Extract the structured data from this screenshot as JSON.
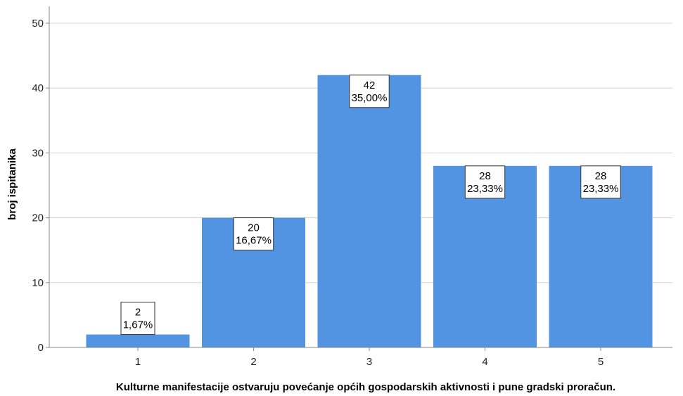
{
  "chart_data": {
    "type": "bar",
    "title": "",
    "xlabel": "Kulturne manifestacije ostvaruju povećanje općih gospodarskih aktivnosti i pune gradski proračun.",
    "ylabel": "broj ispitanika",
    "categories": [
      "1",
      "2",
      "3",
      "4",
      "5"
    ],
    "values": [
      2,
      20,
      42,
      28,
      28
    ],
    "data_labels": [
      {
        "count": "2",
        "percent": "1,67%"
      },
      {
        "count": "20",
        "percent": "16,67%"
      },
      {
        "count": "42",
        "percent": "35,00%"
      },
      {
        "count": "28",
        "percent": "23,33%"
      },
      {
        "count": "28",
        "percent": "23,33%"
      }
    ],
    "ylim": [
      0,
      50
    ],
    "yticks": [
      "0",
      "10",
      "20",
      "30",
      "40",
      "50"
    ],
    "grid": "horizontal",
    "bar_color": "#5294e2",
    "grid_color": "#d4d4d4",
    "axis_color": "#888888"
  }
}
